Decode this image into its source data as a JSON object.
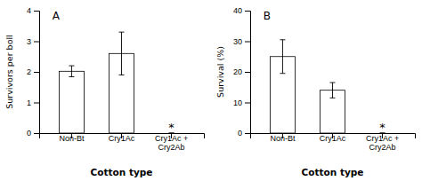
{
  "chart_data": [
    {
      "type": "bar",
      "title": "A",
      "categories": [
        "Non-Bt",
        "Cry1Ac",
        "Cry1Ac +\nCry2Ab"
      ],
      "values": [
        2.02,
        2.6,
        0
      ],
      "errors": [
        0.18,
        0.7,
        0
      ],
      "colors": [
        "white",
        "white",
        "white"
      ],
      "xlabel": "Cotton type",
      "ylabel": "Survivors per boll",
      "ylim": [
        0,
        4
      ],
      "yticks": [
        0,
        1,
        2,
        3,
        4
      ],
      "annotations": [
        {
          "text": "*",
          "x": "Cry1Ac +\nCry2Ab",
          "y": 0
        }
      ]
    },
    {
      "type": "bar",
      "title": "B",
      "categories": [
        "Non-Bt",
        "Cry1Ac",
        "Cry1Ac +\nCry2Ab"
      ],
      "values": [
        25.0,
        14.0,
        0
      ],
      "errors": [
        5.5,
        2.5,
        0
      ],
      "colors": [
        "white",
        "white",
        "white"
      ],
      "xlabel": "Cotton type",
      "ylabel": "Survival (%)",
      "ylim": [
        0,
        40
      ],
      "yticks": [
        0,
        10,
        20,
        30,
        40
      ],
      "annotations": [
        {
          "text": "*",
          "x": "Cry1Ac +\nCry2Ab",
          "y": 0
        }
      ]
    }
  ]
}
